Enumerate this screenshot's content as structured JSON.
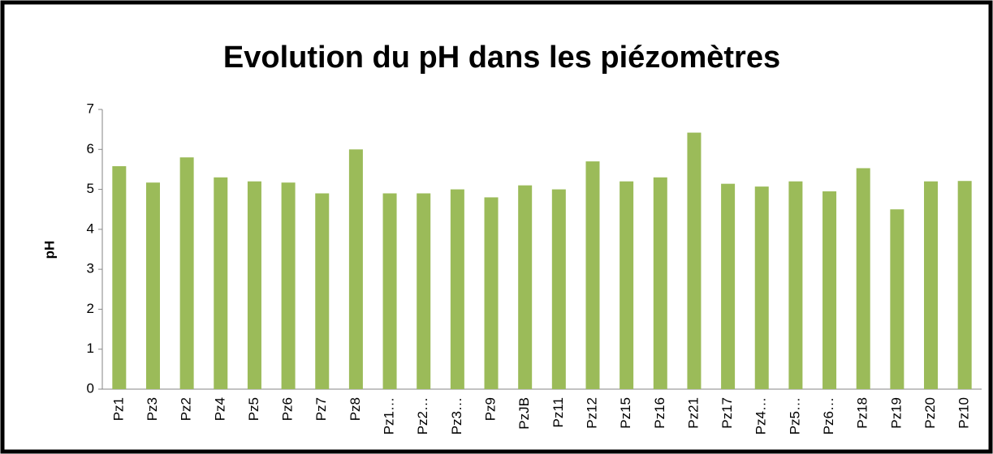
{
  "chart_data": {
    "type": "bar",
    "title": "Evolution du pH dans les piézomètres",
    "y_label": "pH",
    "categories": [
      "Pz1",
      "Pz3",
      "Pz2",
      "Pz4",
      "Pz5",
      "Pz6",
      "Pz7",
      "Pz8",
      "Pz1…",
      "Pz2…",
      "Pz3…",
      "Pz9",
      "PzJB",
      "Pz11",
      "Pz12",
      "Pz15",
      "Pz16",
      "Pz21",
      "Pz17",
      "Pz4…",
      "Pz5…",
      "Pz6…",
      "Pz18",
      "Pz19",
      "Pz20",
      "Pz10"
    ],
    "values": [
      5.58,
      5.17,
      5.8,
      5.3,
      5.2,
      5.17,
      4.9,
      6.0,
      4.9,
      4.9,
      5.0,
      4.8,
      5.1,
      5.0,
      5.7,
      5.2,
      5.3,
      6.42,
      5.14,
      5.07,
      5.2,
      4.95,
      5.53,
      4.5,
      5.2,
      5.21
    ],
    "color": "#9bbb59",
    "ylim": [
      0,
      7
    ],
    "yticks": [
      0,
      1,
      2,
      3,
      4,
      5,
      6,
      7
    ],
    "grid": false
  }
}
